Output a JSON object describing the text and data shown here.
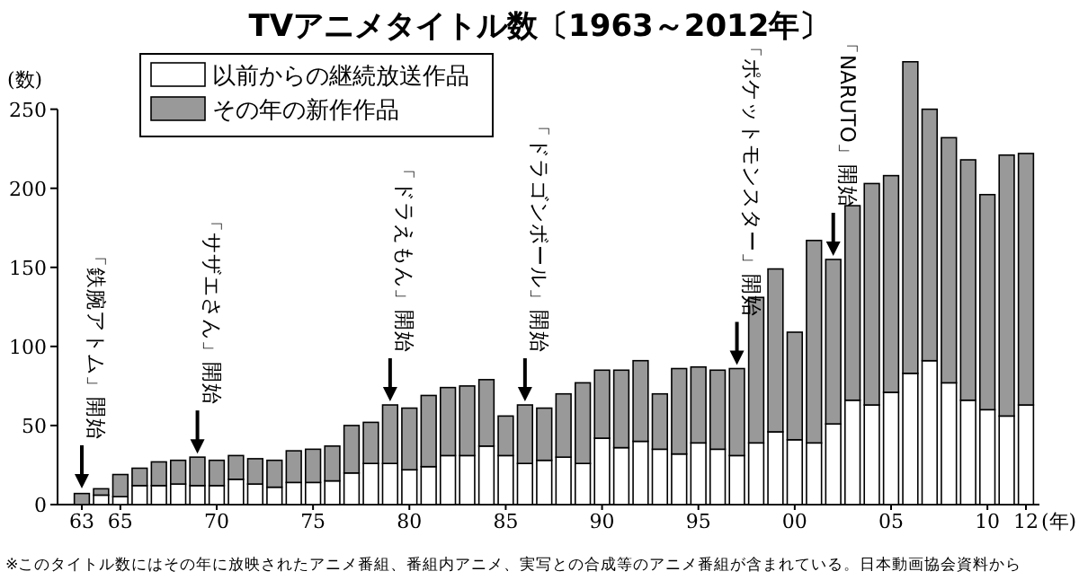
{
  "chart_data": {
    "type": "bar",
    "stacked": true,
    "title": "TVアニメタイトル数〔1963～2012年〕",
    "ylabel": "(数)",
    "xlabel": "(年)",
    "x": [
      1963,
      1964,
      1965,
      1966,
      1967,
      1968,
      1969,
      1970,
      1971,
      1972,
      1973,
      1974,
      1975,
      1976,
      1977,
      1978,
      1979,
      1980,
      1981,
      1982,
      1983,
      1984,
      1985,
      1986,
      1987,
      1988,
      1989,
      1990,
      1991,
      1992,
      1993,
      1994,
      1995,
      1996,
      1997,
      1998,
      1999,
      2000,
      2001,
      2002,
      2003,
      2004,
      2005,
      2006,
      2007,
      2008,
      2009,
      2010,
      2011,
      2012
    ],
    "series": [
      {
        "name": "以前からの継続放送作品",
        "color": "#ffffff",
        "values": [
          null,
          6,
          5,
          12,
          12,
          13,
          12,
          12,
          16,
          13,
          11,
          14,
          14,
          15,
          20,
          26,
          26,
          22,
          24,
          31,
          31,
          37,
          31,
          26,
          28,
          30,
          26,
          42,
          36,
          40,
          35,
          32,
          39,
          35,
          31,
          39,
          46,
          41,
          39,
          51,
          66,
          63,
          71,
          83,
          91,
          77,
          66,
          60,
          56,
          63
        ]
      },
      {
        "name": "その年の新作作品",
        "color": "#999999",
        "values": [
          7,
          4,
          14,
          11,
          15,
          15,
          18,
          16,
          15,
          16,
          17,
          20,
          21,
          22,
          30,
          26,
          37,
          39,
          45,
          43,
          44,
          42,
          25,
          37,
          33,
          40,
          51,
          43,
          49,
          51,
          35,
          54,
          48,
          50,
          55,
          92,
          103,
          68,
          128,
          104,
          123,
          140,
          137,
          197,
          159,
          155,
          152,
          136,
          165,
          159
        ]
      }
    ],
    "xlim": [
      1962.3,
      2012.7
    ],
    "xticks": [
      {
        "value": 1963,
        "label": "63"
      },
      {
        "value": 1965,
        "label": "65"
      },
      {
        "value": 1970,
        "label": "70"
      },
      {
        "value": 1975,
        "label": "75"
      },
      {
        "value": 1980,
        "label": "80"
      },
      {
        "value": 1985,
        "label": "85"
      },
      {
        "value": 1990,
        "label": "90"
      },
      {
        "value": 1995,
        "label": "95"
      },
      {
        "value": 2000,
        "label": "00"
      },
      {
        "value": 2005,
        "label": "05"
      },
      {
        "value": 2010,
        "label": "10"
      },
      {
        "value": 2012,
        "label": "12"
      }
    ],
    "ylim": [
      0,
      285
    ],
    "yticks": [
      0,
      50,
      100,
      150,
      200,
      250
    ],
    "legend": "top",
    "annotations": [
      {
        "text": "「鉄腕アトム」開始",
        "x": 1963,
        "y": 8
      },
      {
        "text": "「サザエさん」開始",
        "x": 1969,
        "y": 30
      },
      {
        "text": "「ドラえもん」開始",
        "x": 1979,
        "y": 63
      },
      {
        "text": "「ドラゴンボール」開始",
        "x": 1986,
        "y": 63
      },
      {
        "text": "「ポケットモンスター」開始",
        "x": 1997,
        "y": 86
      },
      {
        "text": "「NARUTO」開始",
        "x": 2002,
        "y": 155
      },
      "※このタイトル数にはその年に放映されたアニメ番組、番組内アニメ、実写との合成等のアニメ番組が含まれている。日本動画協会資料から"
    ]
  }
}
